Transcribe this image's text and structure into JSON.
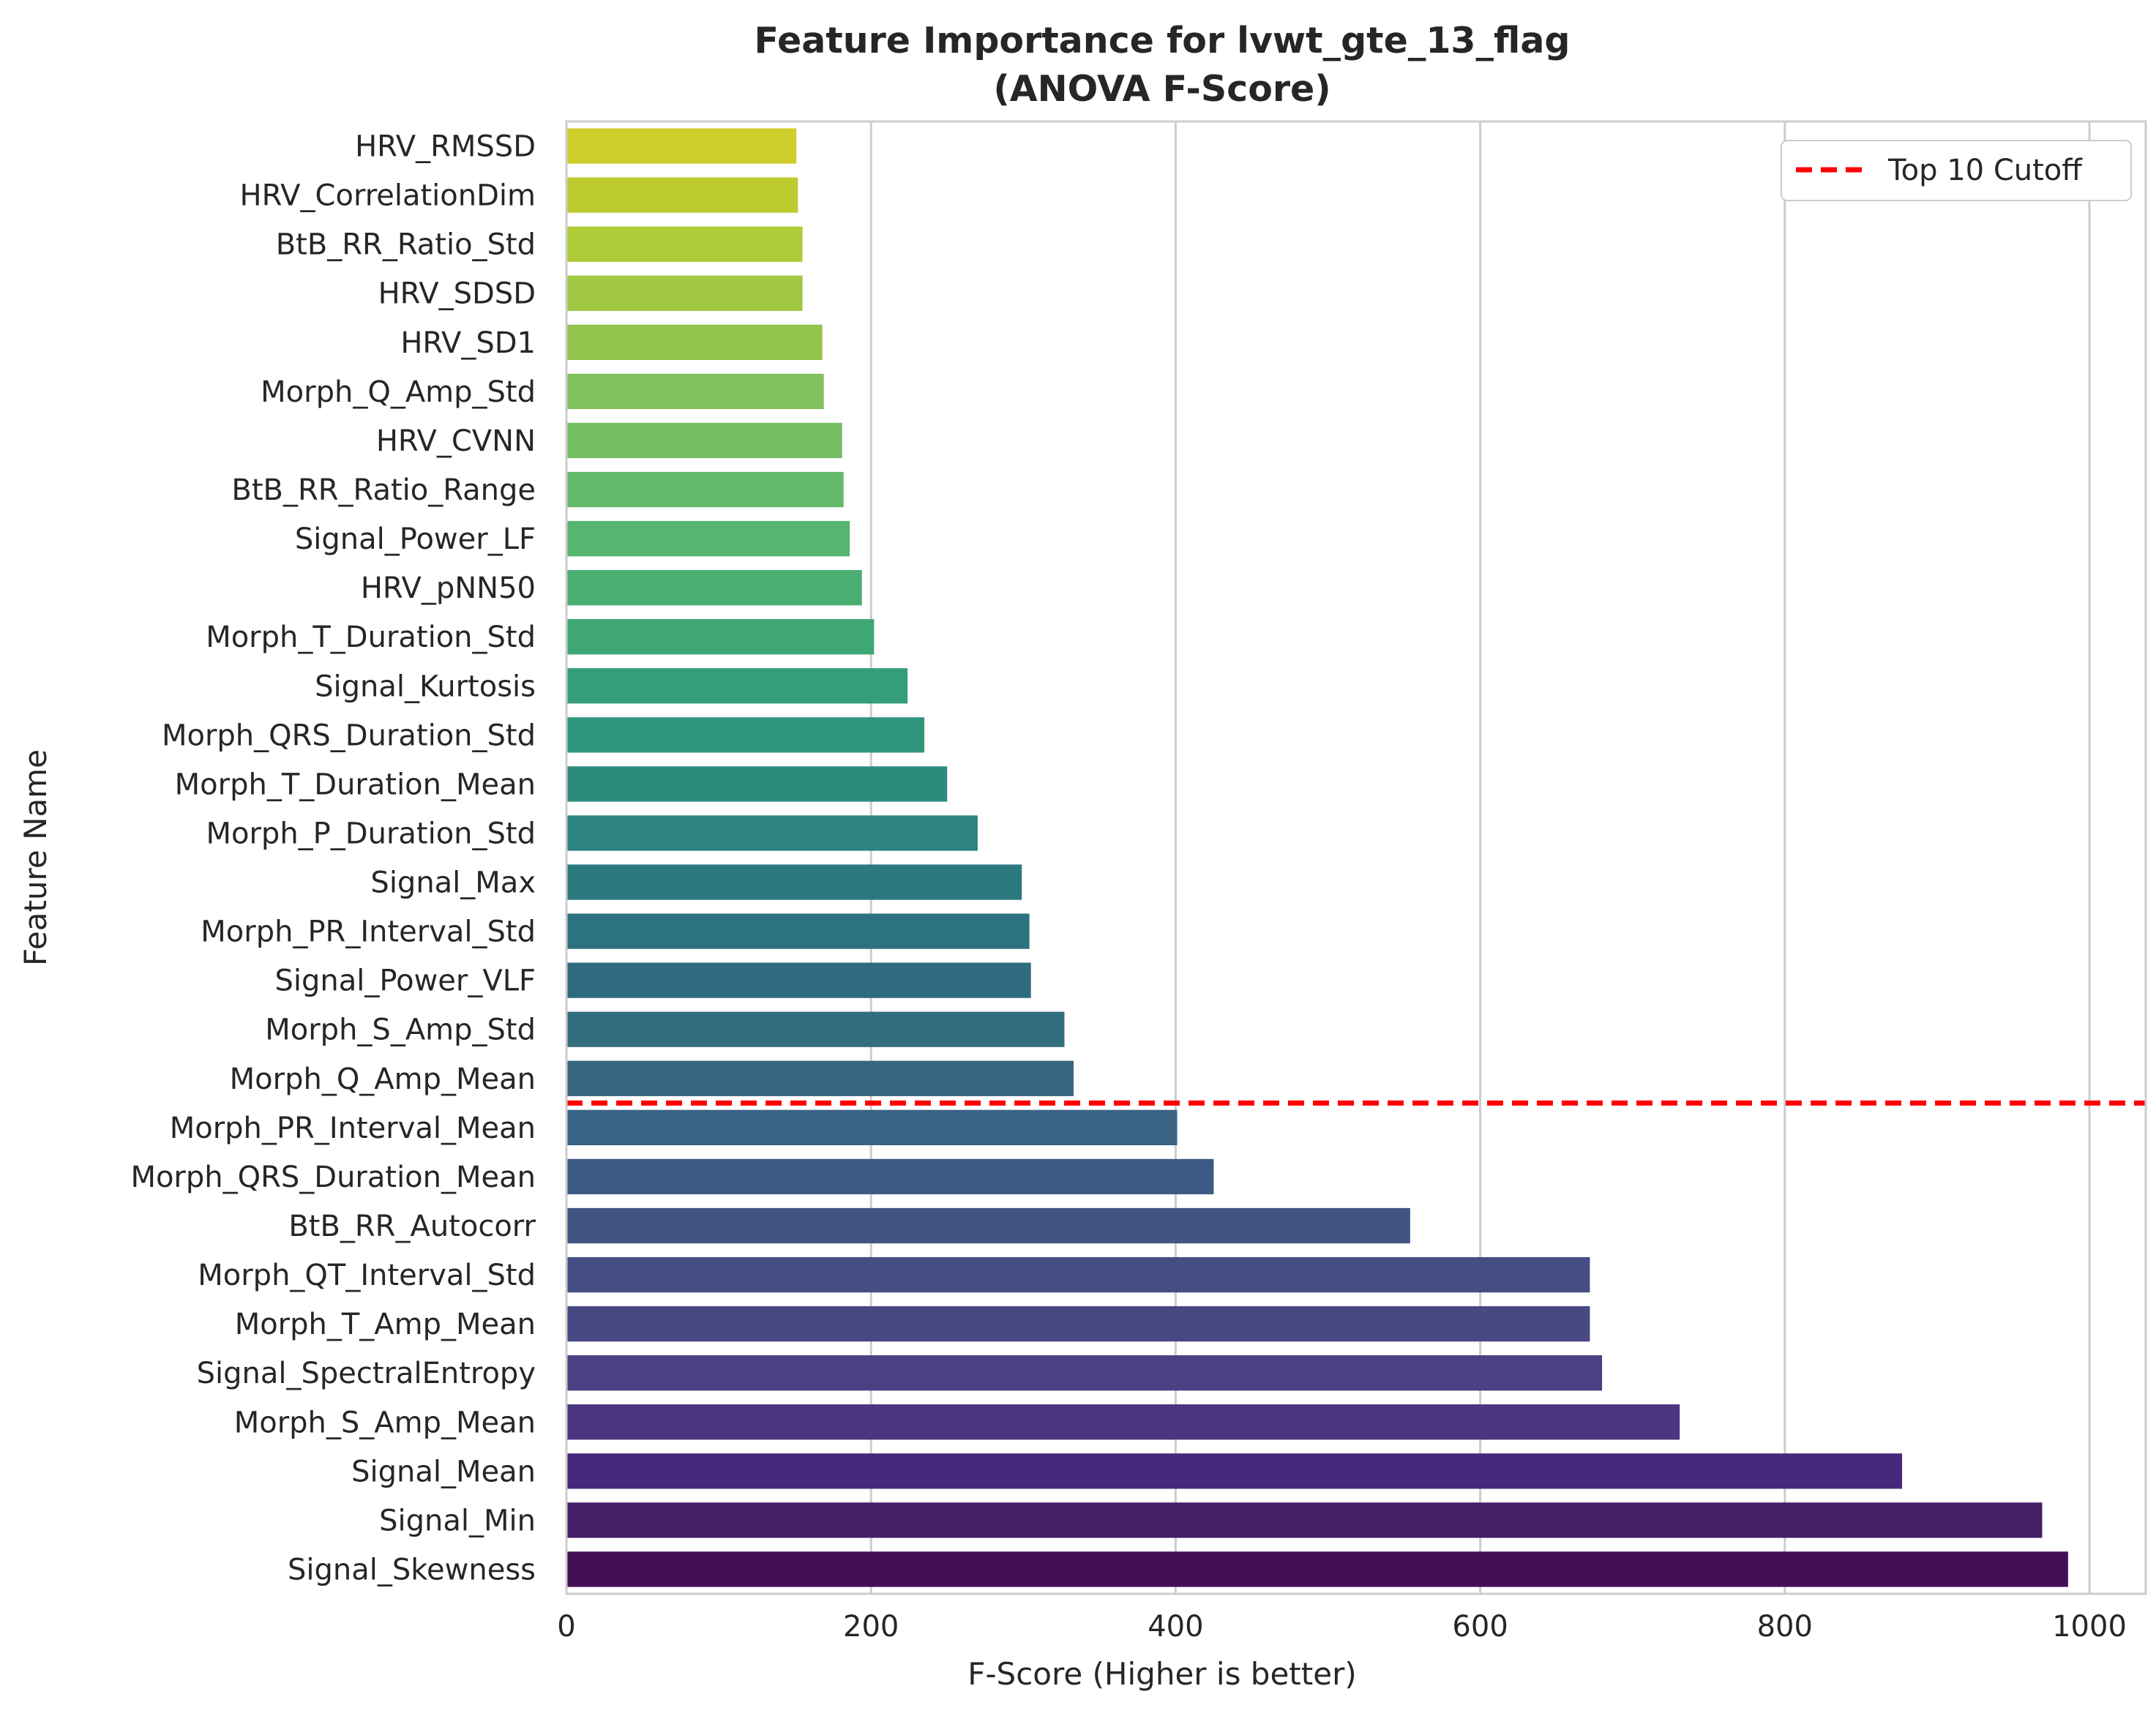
{
  "chart_data": {
    "type": "bar",
    "orientation": "horizontal",
    "title": "Feature Importance for lvwt_gte_13_flag",
    "subtitle": "(ANOVA F-Score)",
    "xlabel": "F-Score (Higher is better)",
    "ylabel": "Feature Name",
    "xlim": [
      0,
      1037
    ],
    "xticks": [
      "0",
      "200",
      "400",
      "600",
      "800",
      "1000"
    ],
    "xtick_values": [
      0,
      200,
      400,
      600,
      800,
      1000
    ],
    "grid": "x",
    "legend": {
      "placement": "top-right",
      "entries": [
        {
          "label": "Top 10 Cutoff",
          "color": "#ff0000",
          "style": "dashed"
        }
      ]
    },
    "cutoff_after_index": 19,
    "colormap": "viridis",
    "categories": [
      "HRV_RMSSD",
      "HRV_CorrelationDim",
      "BtB_RR_Ratio_Std",
      "HRV_SDSD",
      "HRV_SD1",
      "Morph_Q_Amp_Std",
      "HRV_CVNN",
      "BtB_RR_Ratio_Range",
      "Signal_Power_LF",
      "HRV_pNN50",
      "Morph_T_Duration_Std",
      "Signal_Kurtosis",
      "Morph_QRS_Duration_Std",
      "Morph_T_Duration_Mean",
      "Morph_P_Duration_Std",
      "Signal_Max",
      "Morph_PR_Interval_Std",
      "Signal_Power_VLF",
      "Morph_S_Amp_Std",
      "Morph_Q_Amp_Mean",
      "Morph_PR_Interval_Mean",
      "Morph_QRS_Duration_Mean",
      "BtB_RR_Autocorr",
      "Morph_QT_Interval_Std",
      "Morph_T_Amp_Mean",
      "Signal_SpectralEntropy",
      "Morph_S_Amp_Mean",
      "Signal_Mean",
      "Signal_Min",
      "Signal_Skewness"
    ],
    "values": [
      151,
      152,
      155,
      155,
      168,
      169,
      181,
      182,
      186,
      194,
      202,
      224,
      235,
      250,
      270,
      299,
      304,
      305,
      327,
      333,
      401,
      425,
      554,
      672,
      672,
      680,
      731,
      877,
      969,
      986
    ],
    "colors": [
      "#d0ce2d",
      "#bdcb30",
      "#aecb38",
      "#a0c842",
      "#91c54b",
      "#82c25c",
      "#74bf63",
      "#64ba6c",
      "#56b56f",
      "#4aad72",
      "#3ea774",
      "#359d7a",
      "#2f967d",
      "#2d8b7e",
      "#2d837f",
      "#2b7a80",
      "#2d737f",
      "#2e6b80",
      "#336e7f",
      "#366582",
      "#3a6384",
      "#3d5a85",
      "#415585",
      "#444d84",
      "#484883",
      "#4a4082",
      "#4b3580",
      "#46297a",
      "#451f65",
      "#440f55"
    ]
  }
}
